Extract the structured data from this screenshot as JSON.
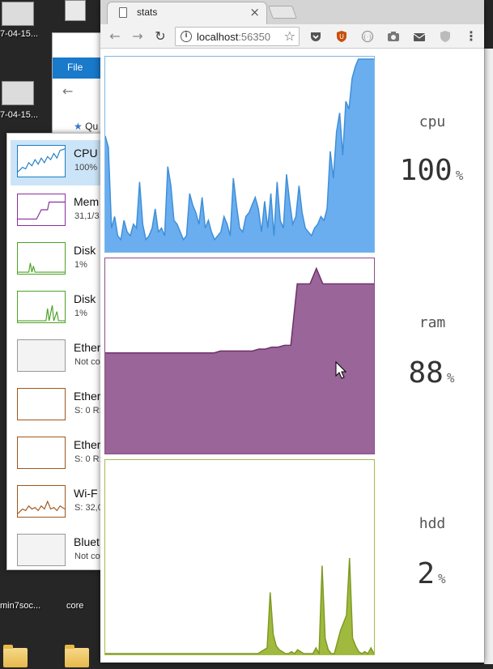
{
  "desktop": {
    "labels": [
      {
        "id": "d1",
        "text": "7-04-15..."
      },
      {
        "id": "d2",
        "text": "7-04-15..."
      },
      {
        "id": "d3",
        "text": "min7soc..."
      },
      {
        "id": "d4",
        "text": "core"
      }
    ]
  },
  "explorer": {
    "ribbon_file": "File",
    "quick_access_fragment": "Qu"
  },
  "task_manager": {
    "items": [
      {
        "name": "CPU",
        "value": "100%",
        "color": "#1a7dc4"
      },
      {
        "name": "Mem",
        "value": "31,1/3",
        "color": "#8b2fa0"
      },
      {
        "name": "Disk",
        "value": "1%",
        "color": "#4da224"
      },
      {
        "name": "Disk",
        "value": "1%",
        "color": "#4da224"
      },
      {
        "name": "Ether",
        "value": "Not co",
        "color": "#999999"
      },
      {
        "name": "Ether",
        "value": "S: 0 R:",
        "color": "#a0561a"
      },
      {
        "name": "Ether",
        "value": "S: 0 R:",
        "color": "#a0561a"
      },
      {
        "name": "Wi-F",
        "value": "S: 32,0",
        "color": "#a0561a"
      },
      {
        "name": "Bluet",
        "value": "Not co",
        "color": "#999999"
      }
    ]
  },
  "browser": {
    "tab_title": "stats",
    "url_host": "localhost",
    "url_port": ":56350"
  },
  "metrics": [
    {
      "label": "cpu",
      "value": "100",
      "unit": "%",
      "fill": "#6aaef0",
      "stroke": "#3f8fd8",
      "border": "#7fb7e6"
    },
    {
      "label": "ram",
      "value": "88",
      "unit": "%",
      "fill": "#9a6598",
      "stroke": "#6e2f6c",
      "border": "#8a4d88"
    },
    {
      "label": "hdd",
      "value": "2",
      "unit": "%",
      "fill": "#9fba3e",
      "stroke": "#7f9a22",
      "border": "#a8bb4a"
    }
  ],
  "series": {
    "cpu": [
      60,
      54,
      12,
      18,
      8,
      6,
      16,
      10,
      8,
      14,
      12,
      36,
      14,
      6,
      8,
      12,
      22,
      10,
      12,
      8,
      44,
      34,
      16,
      14,
      10,
      6,
      8,
      30,
      24,
      20,
      14,
      28,
      12,
      16,
      10,
      6,
      8,
      10,
      18,
      14,
      8,
      38,
      24,
      12,
      10,
      18,
      20,
      24,
      28,
      22,
      10,
      26,
      12,
      30,
      8,
      36,
      16,
      12,
      40,
      26,
      14,
      18,
      34,
      20,
      12,
      10,
      8,
      12,
      14,
      18,
      16,
      22,
      52,
      38,
      62,
      72,
      50,
      78,
      74,
      90,
      96,
      100,
      100,
      100,
      100,
      100,
      100
    ],
    "ram": [
      52,
      52,
      52,
      52,
      52,
      52,
      52,
      52,
      52,
      52,
      52,
      52,
      52,
      52,
      52,
      52,
      52,
      52,
      53,
      53,
      53,
      53,
      53,
      53,
      54,
      54,
      55,
      55,
      56,
      56,
      88,
      88,
      88,
      96,
      88,
      88,
      88,
      88,
      88,
      88,
      88,
      88,
      88
    ],
    "hdd": [
      0,
      0,
      0,
      0,
      0,
      0,
      0,
      0,
      0,
      0,
      0,
      0,
      0,
      0,
      0,
      0,
      0,
      0,
      0,
      0,
      0,
      0,
      0,
      0,
      0,
      0,
      0,
      0,
      0,
      0,
      0,
      0,
      0,
      0,
      0,
      0,
      0,
      0,
      0,
      0,
      0,
      0,
      0,
      0,
      0,
      0,
      0,
      0,
      0,
      0,
      0,
      1,
      2,
      3,
      32,
      10,
      4,
      2,
      1,
      0,
      0,
      1,
      0,
      2,
      1,
      0,
      0,
      0,
      0,
      3,
      0,
      46,
      8,
      2,
      0,
      0,
      6,
      12,
      16,
      20,
      50,
      8,
      4,
      1,
      0,
      1,
      0,
      3,
      0
    ]
  }
}
